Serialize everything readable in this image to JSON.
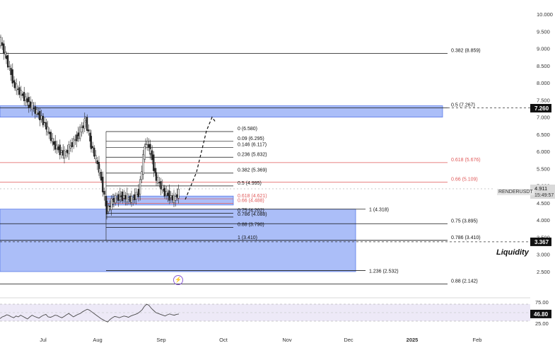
{
  "symbol": "RENDERUSDT",
  "price_label": {
    "price": "4.911",
    "countdown": "15:49:57"
  },
  "annotation": "Liquidity",
  "event_icon": "lightning-icon",
  "colors": {
    "zone": "#8fa8f5",
    "zone_border": "#5b7be8",
    "red_level": "#e05a5a",
    "black": "#111111",
    "grid_text": "#333333",
    "rsi_line": "#4a4a4a",
    "rsi_band": "#ede9f7"
  },
  "chart_data": [
    {
      "type": "candlestick",
      "title": "",
      "x_ticks": [
        "Jul",
        "Aug",
        "Sep",
        "Oct",
        "Nov",
        "Dec",
        "2025",
        "Feb"
      ],
      "y_ticks": [
        "10.000",
        "9.500",
        "9.000",
        "8.500",
        "8.000",
        "7.500",
        "7.000",
        "6.500",
        "6.000",
        "5.500",
        "5.000",
        "4.500",
        "4.000",
        "3.500",
        "3.000",
        "2.500"
      ],
      "ylim": [
        2.2,
        10.2
      ],
      "price_tags": [
        {
          "value": "7.260",
          "y": 7.26
        },
        {
          "value": "3.367",
          "y": 3.367
        }
      ],
      "zones": [
        {
          "name": "upper-supply-zone",
          "from": 7.0,
          "to": 7.33
        },
        {
          "name": "demand-zone-small",
          "from": 4.44,
          "to": 4.7
        },
        {
          "name": "liquidity-zone",
          "from": 2.5,
          "to": 4.32
        }
      ],
      "fib_levels_left": [
        {
          "label": "0.382 (8.859)",
          "y": 8.859,
          "color": "black"
        },
        {
          "label": "0.5 (7.267)",
          "y": 7.267,
          "color": "black",
          "dashed_extension": true
        },
        {
          "label": "0.618 (5.676)",
          "y": 5.676,
          "color": "red"
        },
        {
          "label": "0.66 (5.109)",
          "y": 5.109,
          "color": "red"
        },
        {
          "label": "0.75 (3.895)",
          "y": 3.895,
          "color": "black"
        },
        {
          "label": "0.786 (3.410)",
          "y": 3.41,
          "color": "black"
        },
        {
          "label": "0.88 (2.142)",
          "y": 2.142,
          "color": "black"
        }
      ],
      "fib_levels_mid": [
        {
          "label": "0 (6.580)",
          "y": 6.58,
          "color": "black"
        },
        {
          "label": "0.09 (6.295)",
          "y": 6.295,
          "color": "black"
        },
        {
          "label": "0.146 (6.117)",
          "y": 6.117,
          "color": "black"
        },
        {
          "label": "0.236 (5.832)",
          "y": 5.832,
          "color": "black"
        },
        {
          "label": "0.382 (5.369)",
          "y": 5.369,
          "color": "black"
        },
        {
          "label": "0.5 (4.995)",
          "y": 4.995,
          "color": "black"
        },
        {
          "label": "0.618 (4.621)",
          "y": 4.621,
          "color": "red"
        },
        {
          "label": "0.66 (4.488)",
          "y": 4.488,
          "color": "red"
        },
        {
          "label": "0.75 (4.202)",
          "y": 4.202,
          "color": "black"
        },
        {
          "label": "0.786 (4.088)",
          "y": 4.088,
          "color": "black"
        },
        {
          "label": "0.88 (3.790)",
          "y": 3.79,
          "color": "black"
        },
        {
          "label": "1 (3.410)",
          "y": 3.41,
          "color": "black"
        }
      ],
      "fib_levels_right": [
        {
          "label": "1 (4.318)",
          "y": 4.318
        },
        {
          "label": "1.236 (2.532)",
          "y": 2.532
        }
      ],
      "projection_path": [
        [
          262,
          4.6
        ],
        [
          278,
          5.4
        ],
        [
          292,
          6.6
        ],
        [
          300,
          7.0
        ],
        [
          305,
          6.85
        ]
      ]
    },
    {
      "type": "line",
      "title": "",
      "name": "RSI",
      "y_ticks": [
        "75.00",
        "25.00"
      ],
      "current_value": "46.80",
      "ylim": [
        20,
        80
      ],
      "band": [
        30,
        70
      ],
      "values": [
        36,
        40,
        42,
        45,
        43,
        40,
        38,
        42,
        40,
        44,
        41,
        38,
        35,
        40,
        44,
        41,
        39,
        37,
        41,
        44,
        46,
        40,
        39,
        41,
        44,
        43,
        40,
        38,
        41,
        45,
        48,
        44,
        40,
        43,
        46,
        48,
        52,
        55,
        58,
        56,
        52,
        48,
        44,
        40,
        36,
        33,
        30,
        28,
        34,
        38,
        41,
        40,
        38,
        40,
        42,
        41,
        39,
        42,
        44,
        46,
        48,
        52,
        57,
        65,
        70,
        67,
        60,
        55,
        50,
        48,
        46,
        44,
        42,
        45,
        47,
        45,
        44,
        46,
        46.8
      ]
    }
  ]
}
